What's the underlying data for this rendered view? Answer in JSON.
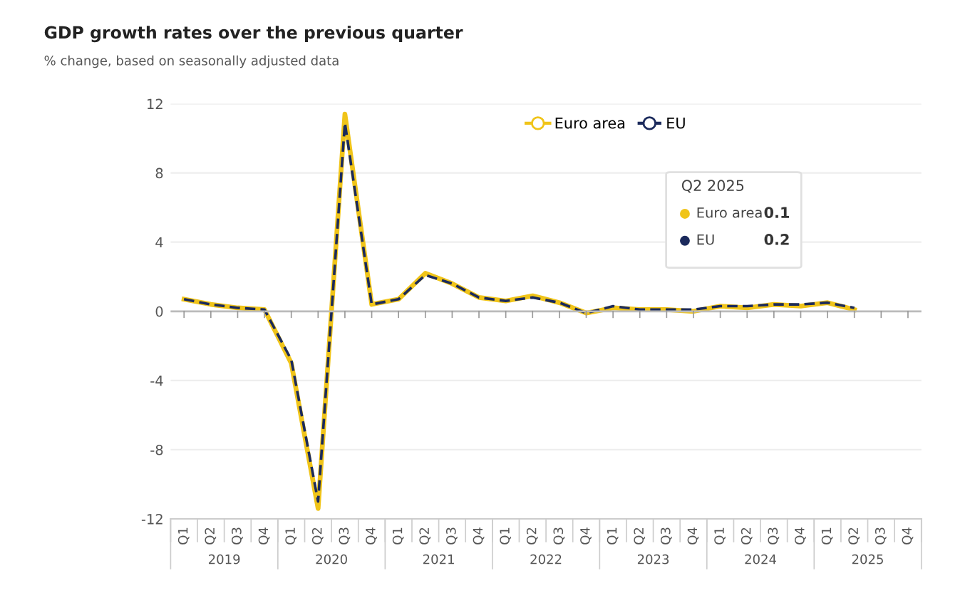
{
  "chart_data": {
    "type": "line",
    "title": "GDP growth rates over the previous quarter",
    "subtitle": "% change, based on seasonally adjusted data",
    "categories": [
      "Q1",
      "Q2",
      "Q3",
      "Q4",
      "Q1",
      "Q2",
      "Q3",
      "Q4",
      "Q1",
      "Q2",
      "Q3",
      "Q4",
      "Q1",
      "Q2",
      "Q3",
      "Q4",
      "Q1",
      "Q2",
      "Q3",
      "Q4",
      "Q1",
      "Q2",
      "Q3",
      "Q4",
      "Q1",
      "Q2",
      "Q3",
      "Q4"
    ],
    "series": [
      {
        "name": "Euro area",
        "color": "#f0c419",
        "line_style": "solid",
        "values": [
          0.7,
          0.4,
          0.2,
          0.1,
          -3.0,
          -11.4,
          11.4,
          0.4,
          0.7,
          2.2,
          1.6,
          0.8,
          0.6,
          0.9,
          0.5,
          -0.1,
          0.2,
          0.1,
          0.1,
          0.0,
          0.3,
          0.2,
          0.4,
          0.3,
          0.5,
          0.1,
          null,
          null
        ]
      },
      {
        "name": "EU",
        "color": "#1b2a5c",
        "line_style": "dashed",
        "values": [
          0.7,
          0.4,
          0.2,
          0.1,
          -2.8,
          -11.0,
          10.9,
          0.4,
          0.7,
          2.1,
          1.6,
          0.8,
          0.6,
          0.8,
          0.5,
          -0.1,
          0.3,
          0.1,
          0.1,
          0.1,
          0.3,
          0.3,
          0.4,
          0.4,
          0.5,
          0.2,
          null,
          null
        ]
      }
    ],
    "ylim": [
      -12,
      12
    ],
    "yticks": [
      -12,
      -8,
      -4,
      0,
      4,
      8,
      12
    ],
    "grid": "y",
    "legend": "top",
    "marker": "none",
    "annotations": [
      "2019",
      "2020",
      "2021",
      "2022",
      "2023",
      "2024",
      "2025",
      "Q2 2025",
      "Euro area",
      "0.1",
      "EU",
      "0.2"
    ]
  }
}
